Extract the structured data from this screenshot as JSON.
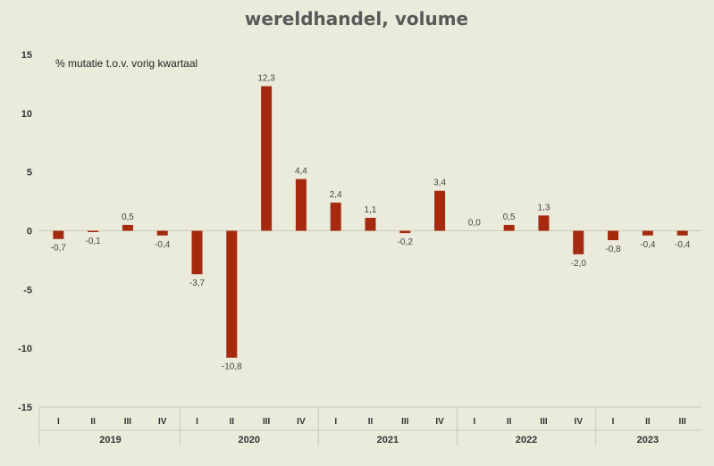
{
  "chart_data": {
    "type": "bar",
    "title": "wereldhandel, volume",
    "subtitle": "% mutatie t.o.v. vorig kwartaal",
    "ylim": [
      -15,
      15
    ],
    "yticks": [
      15,
      10,
      5,
      0,
      -5,
      -10,
      -15
    ],
    "grid": false,
    "bar_color": "#a52a0f",
    "categories": [
      "I",
      "II",
      "III",
      "IV",
      "I",
      "II",
      "III",
      "IV",
      "I",
      "II",
      "III",
      "IV",
      "I",
      "II",
      "III",
      "IV",
      "I",
      "II",
      "III"
    ],
    "groups": [
      {
        "label": "2019",
        "count": 4
      },
      {
        "label": "2020",
        "count": 4
      },
      {
        "label": "2021",
        "count": 4
      },
      {
        "label": "2022",
        "count": 4
      },
      {
        "label": "2023",
        "count": 3
      }
    ],
    "values": [
      -0.7,
      -0.1,
      0.5,
      -0.4,
      -3.7,
      -10.8,
      12.3,
      4.4,
      2.4,
      1.1,
      -0.2,
      3.4,
      0.0,
      0.5,
      1.3,
      -2.0,
      -0.8,
      -0.4,
      -0.4
    ],
    "value_labels": [
      "-0,7",
      "-0,1",
      "0,5",
      "-0,4",
      "-3,7",
      "-10,8",
      "12,3",
      "4,4",
      "2,4",
      "1,1",
      "-0,2",
      "3,4",
      "0,0",
      "0,5",
      "1,3",
      "-2,0",
      "-0,8",
      "-0,4",
      "-0,4"
    ]
  }
}
